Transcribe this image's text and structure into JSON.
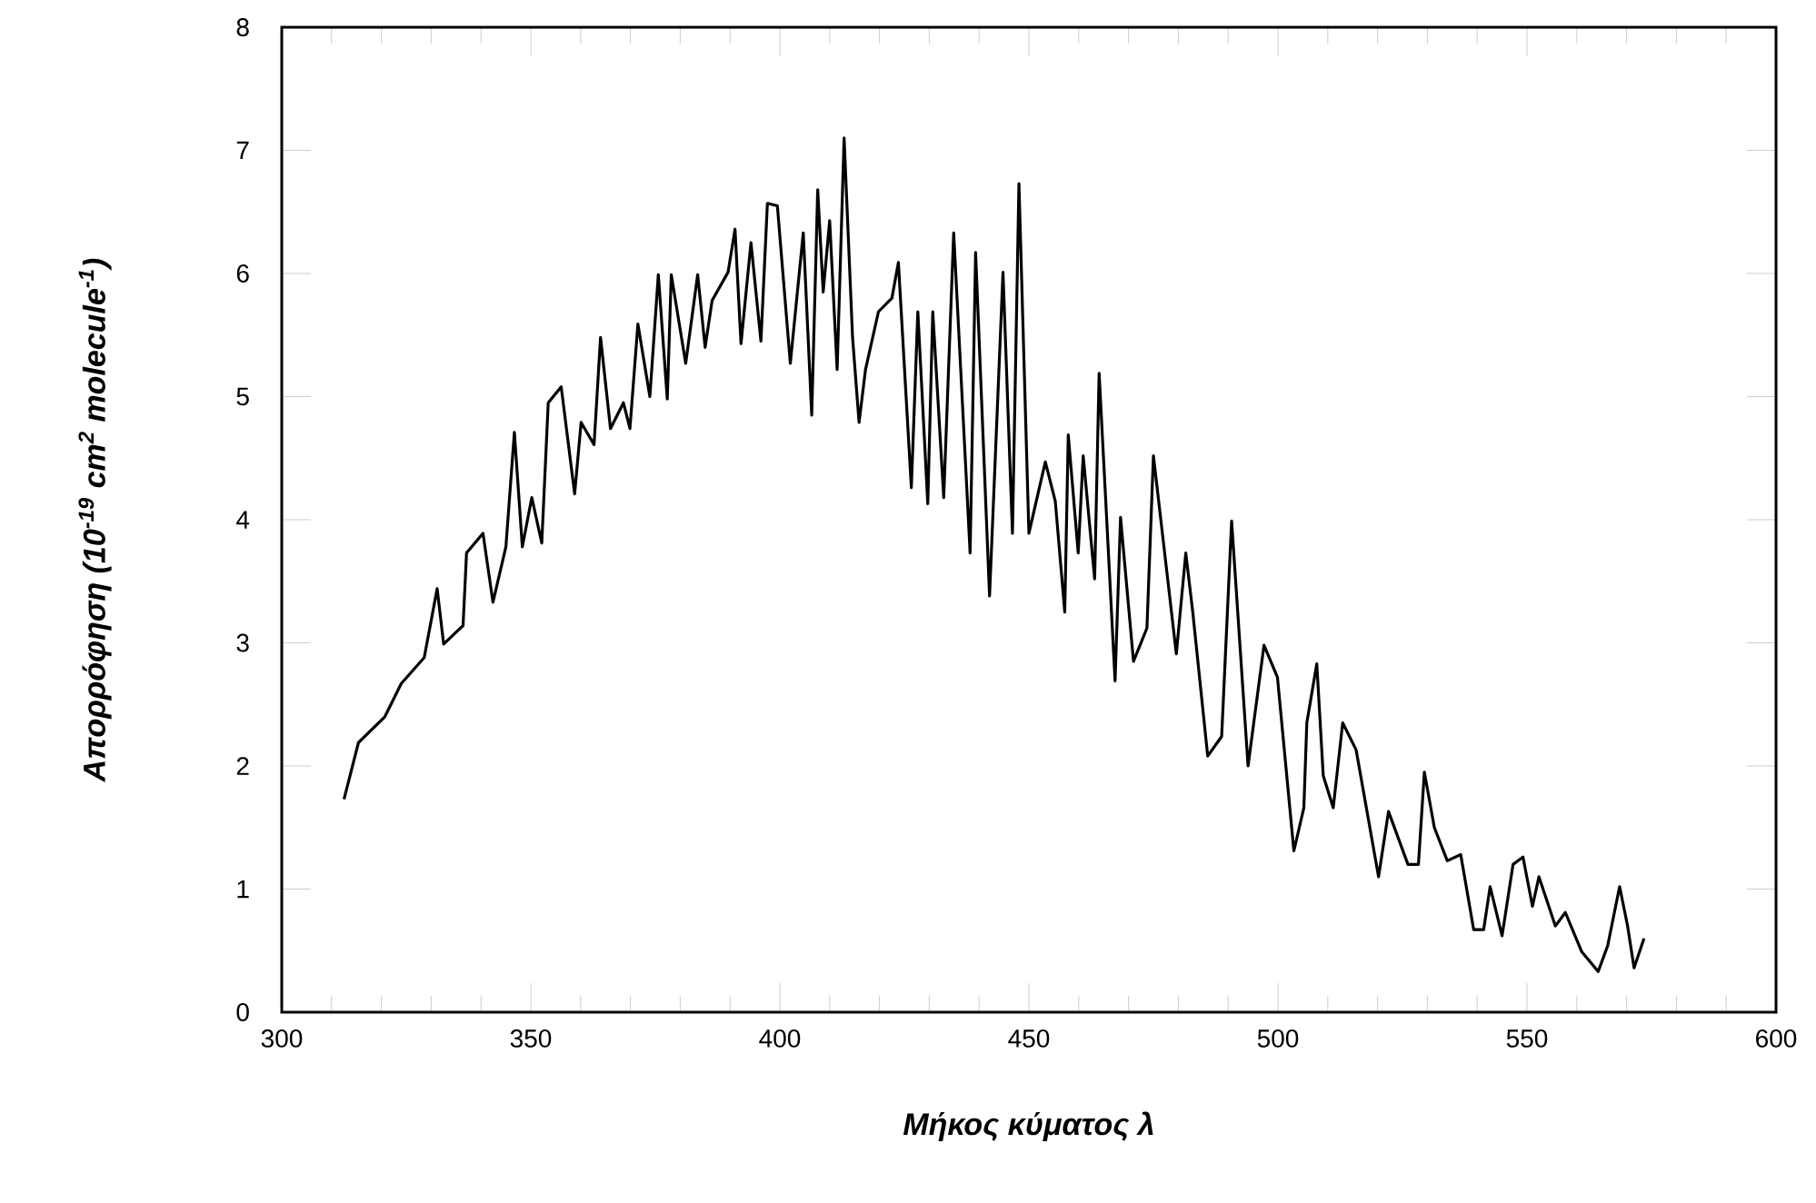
{
  "chart_data": {
    "type": "line",
    "xlabel": "Μήκος κύματος λ",
    "ylabel": "Απορρόφηση (10$^{-19}$ cm$^{2}$ molecule$^{-1}$)",
    "xlim": [
      300,
      600
    ],
    "ylim": [
      0,
      8
    ],
    "xticks": [
      300,
      350,
      400,
      450,
      500,
      550,
      600
    ],
    "yticks": [
      0,
      1,
      2,
      3,
      4,
      5,
      6,
      7,
      8
    ],
    "color": "#000000",
    "x": [
      312.5,
      315.4,
      320.7,
      324.0,
      328.6,
      331.2,
      332.5,
      336.4,
      337.1,
      340.4,
      342.4,
      345.0,
      346.7,
      348.3,
      350.2,
      352.2,
      353.5,
      356.1,
      358.8,
      360.1,
      362.7,
      364.0,
      366.0,
      368.6,
      369.9,
      371.5,
      373.9,
      375.6,
      377.4,
      378.2,
      381.1,
      383.5,
      385.0,
      386.4,
      389.6,
      391.0,
      392.2,
      394.2,
      396.2,
      397.5,
      399.5,
      402.1,
      404.7,
      406.4,
      407.6,
      408.7,
      410.0,
      411.5,
      412.9,
      414.6,
      415.9,
      417.2,
      419.8,
      422.5,
      423.8,
      426.4,
      427.7,
      429.7,
      430.7,
      432.9,
      434.9,
      438.2,
      439.3,
      442.1,
      444.8,
      446.7,
      448.0,
      450.0,
      453.3,
      455.3,
      457.2,
      457.9,
      459.9,
      460.9,
      463.2,
      464.1,
      467.3,
      468.4,
      471.0,
      473.7,
      475.0,
      479.6,
      481.5,
      482.9,
      485.9,
      488.7,
      490.7,
      494.0,
      497.2,
      499.9,
      503.2,
      505.2,
      505.8,
      507.8,
      509.1,
      511.1,
      513.0,
      515.7,
      520.2,
      522.2,
      526.1,
      528.2,
      529.4,
      531.4,
      534.0,
      536.7,
      539.3,
      541.3,
      542.6,
      545.0,
      547.2,
      549.2,
      551.1,
      552.4,
      555.7,
      557.7,
      561.0,
      564.3,
      566.2,
      568.6,
      570.2,
      571.5,
      573.5
    ],
    "values": [
      1.73,
      2.19,
      2.4,
      2.67,
      2.88,
      3.44,
      2.99,
      3.14,
      3.73,
      3.89,
      3.33,
      3.78,
      4.71,
      3.78,
      4.18,
      3.81,
      4.95,
      5.08,
      4.21,
      4.79,
      4.61,
      5.48,
      4.74,
      4.95,
      4.74,
      5.59,
      5.0,
      5.99,
      4.98,
      5.99,
      5.27,
      5.99,
      5.4,
      5.78,
      6.01,
      6.36,
      5.43,
      6.25,
      5.45,
      6.57,
      6.55,
      5.27,
      6.33,
      4.85,
      6.68,
      5.85,
      6.43,
      5.22,
      7.1,
      5.48,
      4.79,
      5.22,
      5.69,
      5.8,
      6.09,
      4.26,
      5.69,
      4.13,
      5.69,
      4.18,
      6.33,
      3.73,
      6.17,
      3.38,
      6.01,
      3.89,
      6.73,
      3.89,
      4.47,
      4.15,
      3.25,
      4.69,
      3.73,
      4.52,
      3.52,
      5.19,
      2.69,
      4.02,
      2.85,
      3.12,
      4.52,
      2.91,
      3.73,
      3.25,
      2.08,
      2.24,
      3.99,
      2.0,
      2.98,
      2.72,
      1.31,
      1.66,
      2.35,
      2.83,
      1.92,
      1.66,
      2.35,
      2.13,
      1.1,
      1.63,
      1.2,
      1.2,
      1.95,
      1.5,
      1.23,
      1.28,
      0.67,
      0.67,
      1.02,
      0.62,
      1.2,
      1.26,
      0.86,
      1.1,
      0.7,
      0.81,
      0.49,
      0.33,
      0.54,
      1.02,
      0.7,
      0.36,
      0.6
    ]
  }
}
